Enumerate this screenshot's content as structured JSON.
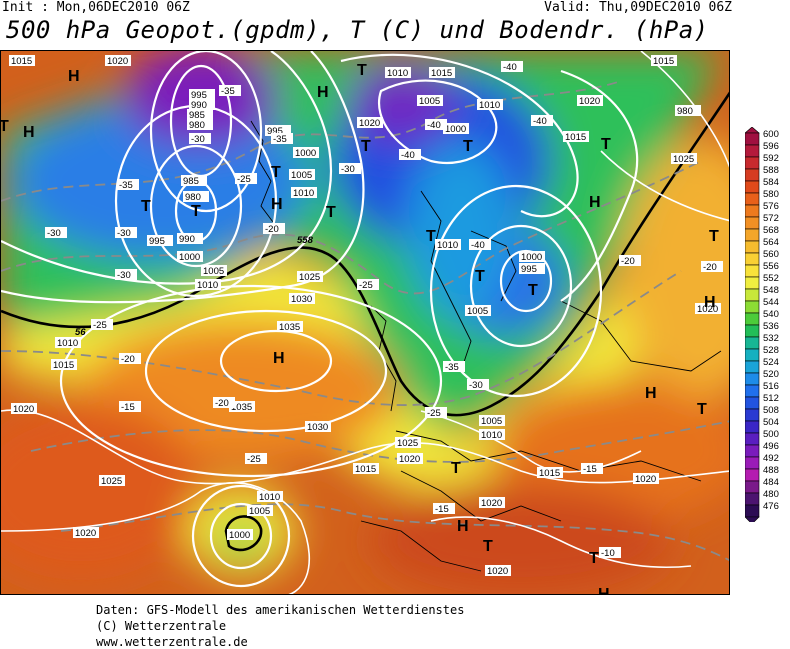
{
  "header": {
    "init": "Init : Mon,06DEC2010 06Z",
    "valid": "Valid: Thu,09DEC2010 06Z",
    "title": "500 hPa Geopot.(gpdm), T (C) und Bodendr. (hPa)"
  },
  "legend": {
    "labels": [
      "600",
      "596",
      "592",
      "588",
      "584",
      "580",
      "576",
      "572",
      "568",
      "564",
      "560",
      "556",
      "552",
      "548",
      "544",
      "540",
      "536",
      "532",
      "528",
      "524",
      "520",
      "516",
      "512",
      "508",
      "504",
      "500",
      "496",
      "492",
      "488",
      "484",
      "480",
      "476"
    ],
    "colors": [
      "#a01040",
      "#b41a3c",
      "#c82a2e",
      "#d63c22",
      "#e04a1a",
      "#e8601a",
      "#ee7a1e",
      "#f29024",
      "#f4a62a",
      "#f6bc2e",
      "#f8d034",
      "#f8e23a",
      "#f0ee40",
      "#c8e83a",
      "#8cdc34",
      "#4ccc3a",
      "#22be58",
      "#18b694",
      "#16b0c0",
      "#1aa4d8",
      "#1e8ce8",
      "#2070ec",
      "#2254e0",
      "#2a3ad2",
      "#3a26c6",
      "#5a1ec0",
      "#7a1cbc",
      "#9a1cb8",
      "#b41cb0",
      "#7a1a8a",
      "#4c1470",
      "#2c0c54"
    ]
  },
  "map": {
    "pressure_labels": [
      "1015",
      "1020",
      "1010",
      "1005",
      "1000",
      "995",
      "990",
      "985",
      "980",
      "1025",
      "1030",
      "1035"
    ],
    "temp_labels": [
      "-40",
      "-35",
      "-30",
      "-25",
      "-20",
      "-15",
      "-10"
    ],
    "geo_labels": [
      "558",
      "56"
    ],
    "centers_high": "H",
    "centers_low": "T"
  },
  "footer": {
    "line1": "Daten: GFS-Modell des amerikanischen Wetterdienstes",
    "line2": "(C) Wetterzentrale",
    "line3": "www.wetterzentrale.de"
  }
}
